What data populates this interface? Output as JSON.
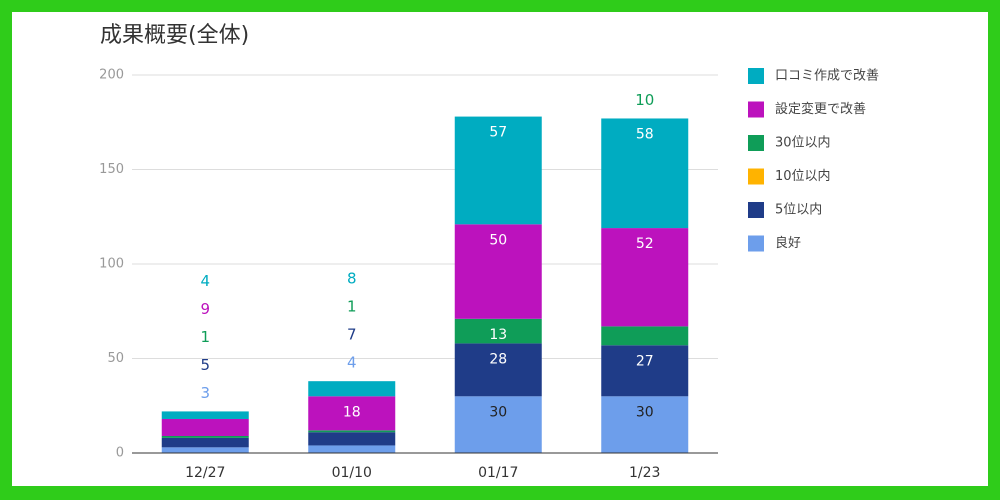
{
  "chart_data": {
    "type": "stacked_bar",
    "title": "成果概要(全体)",
    "categories": [
      "12/27",
      "01/10",
      "01/17",
      "1/23"
    ],
    "series": [
      {
        "name": "良好",
        "color": "#6d9eeb",
        "label_color": "#222222",
        "values": [
          3,
          4,
          30,
          30
        ]
      },
      {
        "name": "5位以内",
        "color": "#1f3c88",
        "label_color": "#ffffff",
        "values": [
          5,
          7,
          28,
          27
        ]
      },
      {
        "name": "10位以内",
        "color": "#ffb300",
        "label_color": "#ffffff",
        "values": [
          0,
          0,
          0,
          0
        ]
      },
      {
        "name": "30位以内",
        "color": "#0f9d58",
        "label_color": "#ffffff",
        "values": [
          1,
          1,
          13,
          10
        ]
      },
      {
        "name": "設定変更で改善",
        "color": "#bc12bd",
        "label_color": "#ffffff",
        "values": [
          9,
          18,
          50,
          52
        ]
      },
      {
        "name": "口コミ作成で改善",
        "color": "#00acc1",
        "label_color": "#ffffff",
        "values": [
          4,
          8,
          57,
          58
        ]
      }
    ],
    "ylim": [
      0,
      200
    ],
    "yticks": [
      0,
      50,
      100,
      150,
      200
    ],
    "grid": true,
    "legend": "right"
  }
}
